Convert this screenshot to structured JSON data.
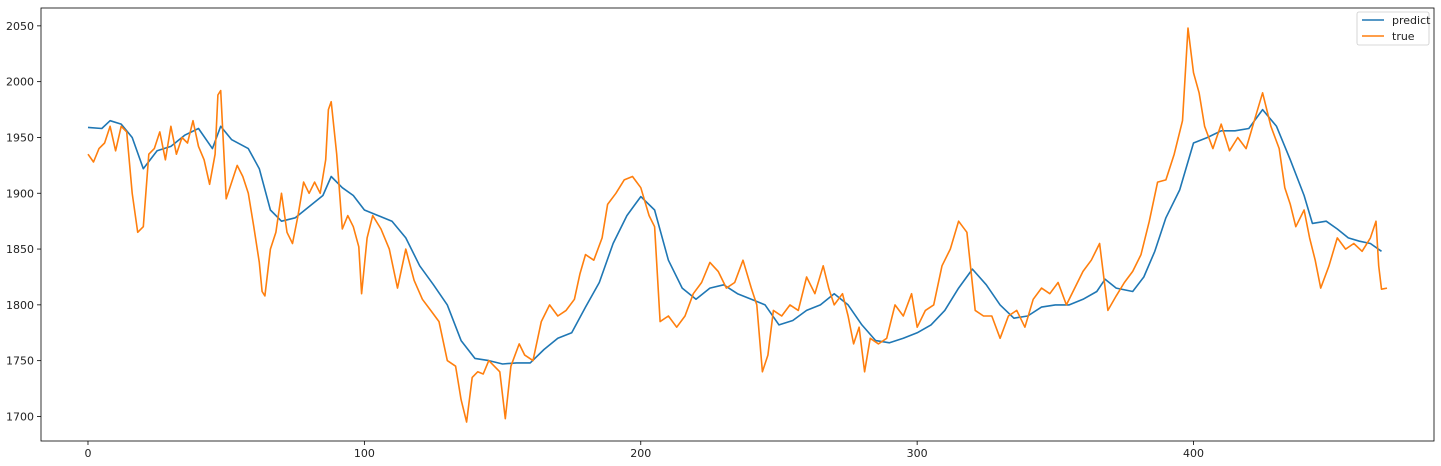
{
  "chart_data": {
    "type": "line",
    "title": "",
    "xlabel": "",
    "ylabel": "",
    "xlim": [
      -17,
      487
    ],
    "ylim": [
      1678,
      2066
    ],
    "grid": false,
    "legend_position": "top-right",
    "x_ticks": [
      0,
      100,
      200,
      300,
      400
    ],
    "y_ticks": [
      1700,
      1750,
      1800,
      1850,
      1900,
      1950,
      2000,
      2050
    ],
    "x_tick_labels": [
      "0",
      "100",
      "200",
      "300",
      "400"
    ],
    "y_tick_labels": [
      "1700",
      "1750",
      "1800",
      "1850",
      "1900",
      "1950",
      "2000",
      "2050"
    ],
    "series": [
      {
        "name": "predict",
        "color": "#1f77b4",
        "points": [
          [
            0,
            1959
          ],
          [
            5,
            1958
          ],
          [
            8,
            1965
          ],
          [
            12,
            1962
          ],
          [
            16,
            1950
          ],
          [
            20,
            1922
          ],
          [
            25,
            1938
          ],
          [
            30,
            1942
          ],
          [
            35,
            1952
          ],
          [
            40,
            1958
          ],
          [
            45,
            1940
          ],
          [
            48,
            1960
          ],
          [
            52,
            1948
          ],
          [
            58,
            1940
          ],
          [
            62,
            1922
          ],
          [
            66,
            1885
          ],
          [
            70,
            1875
          ],
          [
            75,
            1878
          ],
          [
            80,
            1888
          ],
          [
            85,
            1898
          ],
          [
            88,
            1915
          ],
          [
            92,
            1905
          ],
          [
            96,
            1898
          ],
          [
            100,
            1885
          ],
          [
            105,
            1880
          ],
          [
            110,
            1875
          ],
          [
            115,
            1860
          ],
          [
            120,
            1835
          ],
          [
            125,
            1818
          ],
          [
            130,
            1800
          ],
          [
            135,
            1768
          ],
          [
            140,
            1752
          ],
          [
            145,
            1750
          ],
          [
            150,
            1747
          ],
          [
            155,
            1748
          ],
          [
            160,
            1748
          ],
          [
            165,
            1760
          ],
          [
            170,
            1770
          ],
          [
            175,
            1775
          ],
          [
            180,
            1798
          ],
          [
            185,
            1820
          ],
          [
            190,
            1855
          ],
          [
            195,
            1880
          ],
          [
            200,
            1897
          ],
          [
            205,
            1885
          ],
          [
            210,
            1840
          ],
          [
            215,
            1815
          ],
          [
            220,
            1805
          ],
          [
            225,
            1815
          ],
          [
            230,
            1818
          ],
          [
            235,
            1810
          ],
          [
            240,
            1805
          ],
          [
            245,
            1800
          ],
          [
            250,
            1782
          ],
          [
            255,
            1786
          ],
          [
            260,
            1795
          ],
          [
            265,
            1800
          ],
          [
            270,
            1810
          ],
          [
            275,
            1800
          ],
          [
            280,
            1782
          ],
          [
            285,
            1768
          ],
          [
            290,
            1766
          ],
          [
            295,
            1770
          ],
          [
            300,
            1775
          ],
          [
            305,
            1782
          ],
          [
            310,
            1795
          ],
          [
            315,
            1815
          ],
          [
            320,
            1832
          ],
          [
            325,
            1818
          ],
          [
            330,
            1800
          ],
          [
            335,
            1788
          ],
          [
            340,
            1790
          ],
          [
            345,
            1798
          ],
          [
            350,
            1800
          ],
          [
            355,
            1800
          ],
          [
            360,
            1805
          ],
          [
            365,
            1812
          ],
          [
            368,
            1823
          ],
          [
            372,
            1815
          ],
          [
            378,
            1812
          ],
          [
            382,
            1825
          ],
          [
            386,
            1848
          ],
          [
            390,
            1878
          ],
          [
            395,
            1903
          ],
          [
            400,
            1945
          ],
          [
            405,
            1950
          ],
          [
            410,
            1956
          ],
          [
            415,
            1956
          ],
          [
            420,
            1958
          ],
          [
            425,
            1975
          ],
          [
            430,
            1960
          ],
          [
            435,
            1930
          ],
          [
            440,
            1898
          ],
          [
            443,
            1873
          ],
          [
            448,
            1875
          ],
          [
            452,
            1868
          ],
          [
            456,
            1860
          ],
          [
            460,
            1857
          ],
          [
            464,
            1855
          ],
          [
            468,
            1848
          ]
        ]
      },
      {
        "name": "true",
        "color": "#ff7f0e",
        "points": [
          [
            0,
            1935
          ],
          [
            2,
            1928
          ],
          [
            4,
            1940
          ],
          [
            6,
            1945
          ],
          [
            8,
            1960
          ],
          [
            10,
            1938
          ],
          [
            12,
            1960
          ],
          [
            14,
            1955
          ],
          [
            16,
            1900
          ],
          [
            18,
            1865
          ],
          [
            20,
            1870
          ],
          [
            22,
            1935
          ],
          [
            24,
            1940
          ],
          [
            26,
            1955
          ],
          [
            28,
            1930
          ],
          [
            30,
            1960
          ],
          [
            32,
            1935
          ],
          [
            34,
            1950
          ],
          [
            36,
            1945
          ],
          [
            38,
            1965
          ],
          [
            40,
            1942
          ],
          [
            42,
            1930
          ],
          [
            44,
            1908
          ],
          [
            46,
            1935
          ],
          [
            47,
            1988
          ],
          [
            48,
            1992
          ],
          [
            50,
            1895
          ],
          [
            52,
            1910
          ],
          [
            54,
            1925
          ],
          [
            56,
            1915
          ],
          [
            58,
            1900
          ],
          [
            60,
            1870
          ],
          [
            62,
            1838
          ],
          [
            63,
            1812
          ],
          [
            64,
            1808
          ],
          [
            66,
            1850
          ],
          [
            68,
            1865
          ],
          [
            70,
            1900
          ],
          [
            72,
            1865
          ],
          [
            74,
            1855
          ],
          [
            76,
            1880
          ],
          [
            78,
            1910
          ],
          [
            80,
            1900
          ],
          [
            82,
            1910
          ],
          [
            84,
            1900
          ],
          [
            86,
            1930
          ],
          [
            87,
            1975
          ],
          [
            88,
            1982
          ],
          [
            90,
            1935
          ],
          [
            92,
            1868
          ],
          [
            94,
            1880
          ],
          [
            96,
            1870
          ],
          [
            98,
            1852
          ],
          [
            99,
            1810
          ],
          [
            101,
            1860
          ],
          [
            103,
            1880
          ],
          [
            106,
            1868
          ],
          [
            109,
            1850
          ],
          [
            112,
            1815
          ],
          [
            115,
            1850
          ],
          [
            118,
            1822
          ],
          [
            121,
            1805
          ],
          [
            124,
            1795
          ],
          [
            127,
            1785
          ],
          [
            130,
            1750
          ],
          [
            133,
            1745
          ],
          [
            135,
            1715
          ],
          [
            137,
            1695
          ],
          [
            139,
            1735
          ],
          [
            141,
            1740
          ],
          [
            143,
            1738
          ],
          [
            145,
            1750
          ],
          [
            147,
            1745
          ],
          [
            149,
            1740
          ],
          [
            151,
            1698
          ],
          [
            153,
            1745
          ],
          [
            156,
            1765
          ],
          [
            158,
            1755
          ],
          [
            161,
            1750
          ],
          [
            164,
            1785
          ],
          [
            167,
            1800
          ],
          [
            170,
            1790
          ],
          [
            173,
            1795
          ],
          [
            176,
            1805
          ],
          [
            178,
            1828
          ],
          [
            180,
            1845
          ],
          [
            183,
            1840
          ],
          [
            186,
            1860
          ],
          [
            188,
            1890
          ],
          [
            191,
            1900
          ],
          [
            194,
            1912
          ],
          [
            197,
            1915
          ],
          [
            200,
            1905
          ],
          [
            203,
            1880
          ],
          [
            205,
            1870
          ],
          [
            207,
            1785
          ],
          [
            210,
            1790
          ],
          [
            213,
            1780
          ],
          [
            216,
            1790
          ],
          [
            219,
            1810
          ],
          [
            222,
            1820
          ],
          [
            225,
            1838
          ],
          [
            228,
            1830
          ],
          [
            231,
            1815
          ],
          [
            234,
            1820
          ],
          [
            237,
            1840
          ],
          [
            240,
            1815
          ],
          [
            242,
            1800
          ],
          [
            244,
            1740
          ],
          [
            246,
            1755
          ],
          [
            248,
            1795
          ],
          [
            251,
            1790
          ],
          [
            254,
            1800
          ],
          [
            257,
            1795
          ],
          [
            260,
            1825
          ],
          [
            263,
            1810
          ],
          [
            266,
            1835
          ],
          [
            268,
            1815
          ],
          [
            270,
            1800
          ],
          [
            273,
            1810
          ],
          [
            275,
            1790
          ],
          [
            277,
            1765
          ],
          [
            279,
            1780
          ],
          [
            281,
            1740
          ],
          [
            283,
            1770
          ],
          [
            286,
            1765
          ],
          [
            289,
            1770
          ],
          [
            292,
            1800
          ],
          [
            295,
            1790
          ],
          [
            298,
            1810
          ],
          [
            300,
            1780
          ],
          [
            303,
            1795
          ],
          [
            306,
            1800
          ],
          [
            309,
            1835
          ],
          [
            312,
            1850
          ],
          [
            315,
            1875
          ],
          [
            318,
            1865
          ],
          [
            321,
            1795
          ],
          [
            324,
            1790
          ],
          [
            327,
            1790
          ],
          [
            330,
            1770
          ],
          [
            333,
            1790
          ],
          [
            336,
            1795
          ],
          [
            339,
            1780
          ],
          [
            342,
            1805
          ],
          [
            345,
            1815
          ],
          [
            348,
            1810
          ],
          [
            351,
            1820
          ],
          [
            354,
            1800
          ],
          [
            357,
            1815
          ],
          [
            360,
            1830
          ],
          [
            363,
            1840
          ],
          [
            366,
            1855
          ],
          [
            369,
            1795
          ],
          [
            372,
            1808
          ],
          [
            375,
            1820
          ],
          [
            378,
            1830
          ],
          [
            381,
            1845
          ],
          [
            384,
            1875
          ],
          [
            387,
            1910
          ],
          [
            390,
            1912
          ],
          [
            393,
            1935
          ],
          [
            396,
            1965
          ],
          [
            398,
            2048
          ],
          [
            400,
            2008
          ],
          [
            402,
            1990
          ],
          [
            404,
            1960
          ],
          [
            407,
            1940
          ],
          [
            410,
            1962
          ],
          [
            413,
            1938
          ],
          [
            416,
            1950
          ],
          [
            419,
            1940
          ],
          [
            422,
            1965
          ],
          [
            425,
            1990
          ],
          [
            428,
            1960
          ],
          [
            431,
            1940
          ],
          [
            433,
            1905
          ],
          [
            435,
            1890
          ],
          [
            437,
            1870
          ],
          [
            440,
            1885
          ],
          [
            442,
            1860
          ],
          [
            444,
            1840
          ],
          [
            446,
            1815
          ],
          [
            449,
            1835
          ],
          [
            452,
            1860
          ],
          [
            455,
            1850
          ],
          [
            458,
            1855
          ],
          [
            461,
            1848
          ],
          [
            464,
            1860
          ],
          [
            466,
            1875
          ],
          [
            467,
            1835
          ],
          [
            468,
            1814
          ],
          [
            470,
            1815
          ]
        ]
      }
    ]
  }
}
